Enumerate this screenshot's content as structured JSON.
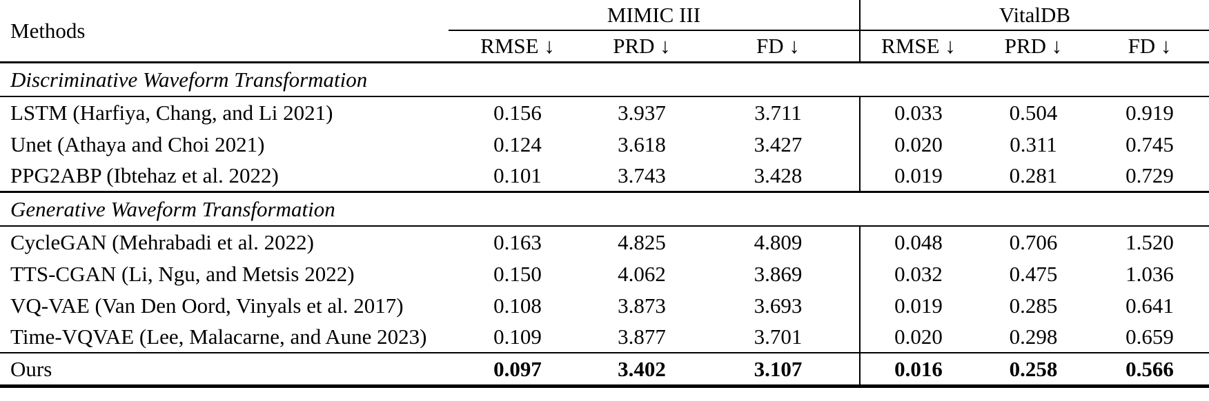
{
  "page": {
    "background_color": "#ffffff",
    "text_color": "#000000",
    "rule_color": "#000000"
  },
  "table": {
    "methods_header": "Methods",
    "column_groups": [
      {
        "label": "MIMIC III",
        "columns": [
          "RMSE ↓",
          "PRD ↓",
          "FD ↓"
        ]
      },
      {
        "label": "VitalDB",
        "columns": [
          "RMSE ↓",
          "PRD ↓",
          "FD ↓"
        ]
      }
    ],
    "sections": [
      {
        "label": "Discriminative Waveform Transformation",
        "rows": [
          {
            "method": "LSTM (Harfiya, Chang, and Li 2021)",
            "values": [
              "0.156",
              "3.937",
              "3.711",
              "0.033",
              "0.504",
              "0.919"
            ]
          },
          {
            "method": "Unet (Athaya and Choi 2021)",
            "values": [
              "0.124",
              "3.618",
              "3.427",
              "0.020",
              "0.311",
              "0.745"
            ]
          },
          {
            "method": "PPG2ABP (Ibtehaz et al. 2022)",
            "values": [
              "0.101",
              "3.743",
              "3.428",
              "0.019",
              "0.281",
              "0.729"
            ]
          }
        ]
      },
      {
        "label": "Generative Waveform Transformation",
        "rows": [
          {
            "method": "CycleGAN (Mehrabadi et al. 2022)",
            "values": [
              "0.163",
              "4.825",
              "4.809",
              "0.048",
              "0.706",
              "1.520"
            ]
          },
          {
            "method": "TTS-CGAN (Li, Ngu, and Metsis 2022)",
            "values": [
              "0.150",
              "4.062",
              "3.869",
              "0.032",
              "0.475",
              "1.036"
            ]
          },
          {
            "method": "VQ-VAE (Van Den Oord, Vinyals et al. 2017)",
            "values": [
              "0.108",
              "3.873",
              "3.693",
              "0.019",
              "0.285",
              "0.641"
            ]
          },
          {
            "method": "Time-VQVAE (Lee, Malacarne, and Aune 2023)",
            "values": [
              "0.109",
              "3.877",
              "3.701",
              "0.020",
              "0.298",
              "0.659"
            ]
          }
        ]
      }
    ],
    "summary_row": {
      "method": "Ours",
      "values": [
        "0.097",
        "3.402",
        "3.107",
        "0.016",
        "0.258",
        "0.566"
      ]
    }
  }
}
